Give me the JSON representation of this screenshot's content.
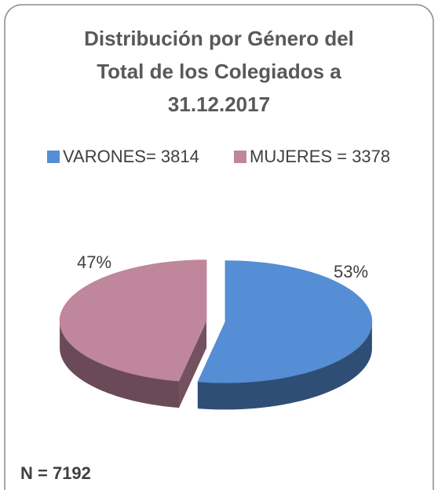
{
  "chart_data": {
    "type": "pie",
    "title": "Distribución por Género del Total de los Colegiados a 31.12.2017",
    "categories": [
      "VARONES= 3814",
      "MUJERES = 3378"
    ],
    "values": [
      53,
      47
    ],
    "value_labels": [
      "53%",
      "47%"
    ],
    "colors": [
      "#558ed5",
      "#c0879c"
    ],
    "legend": "top",
    "annotation": "N = 7192"
  }
}
